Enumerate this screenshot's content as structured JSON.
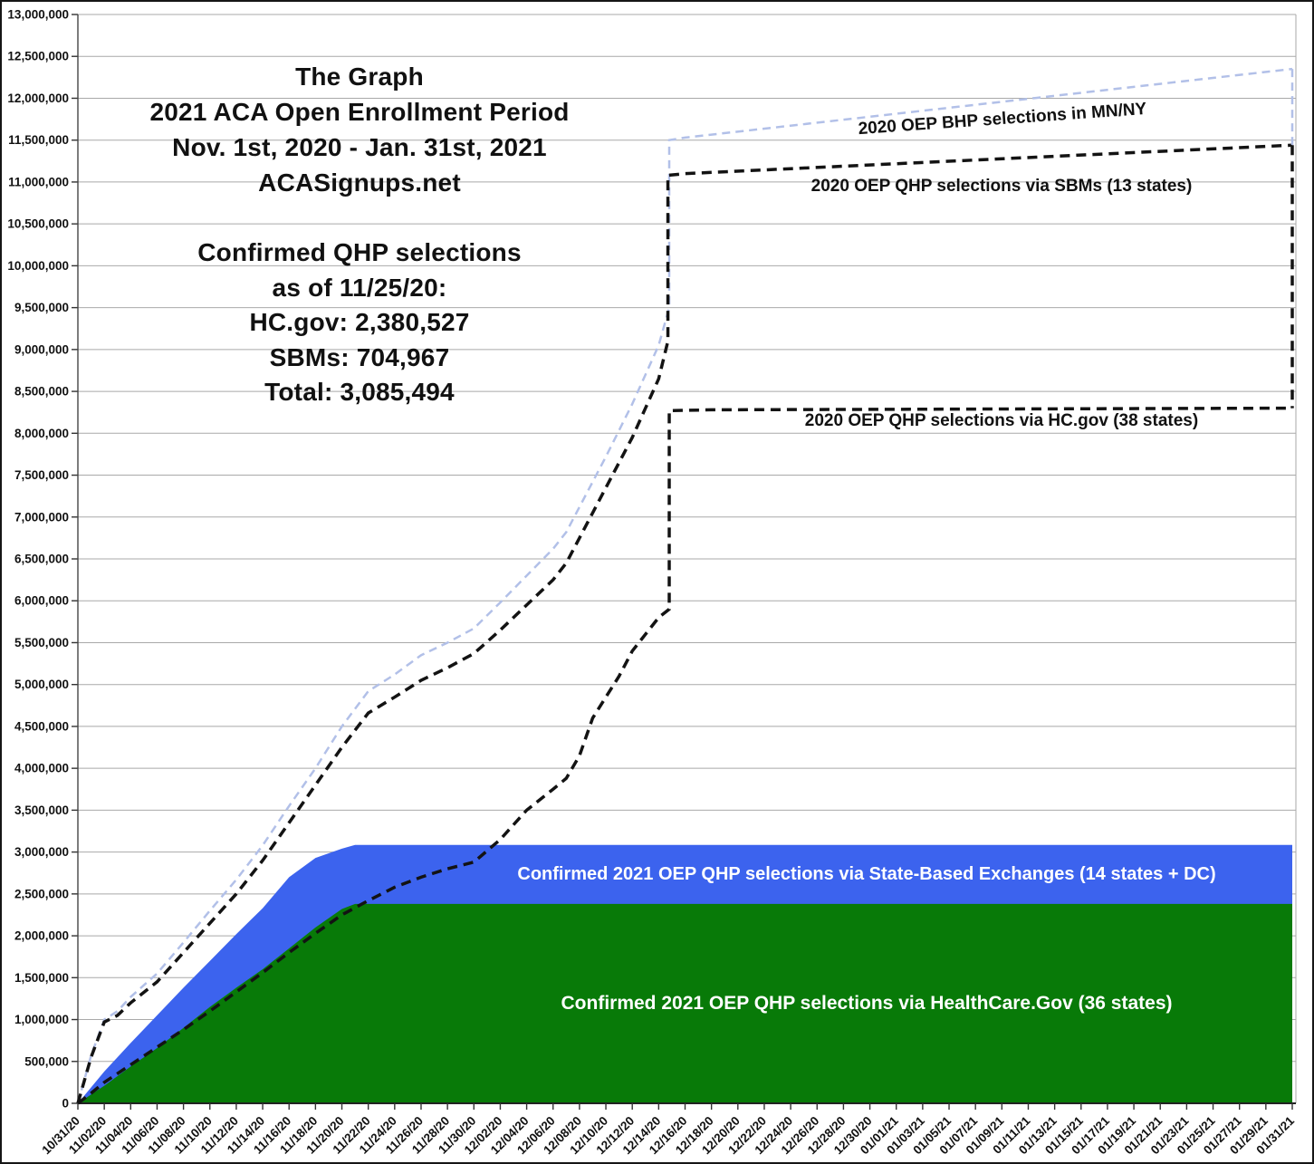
{
  "chart_data": {
    "type": "area",
    "title": "The Graph — 2021 ACA Open Enrollment Period",
    "title_block": [
      "The Graph",
      "2021 ACA Open Enrollment Period",
      "Nov. 1st, 2020 - Jan. 31st, 2021",
      "ACASignups.net"
    ],
    "stats_block": [
      "Confirmed QHP selections",
      "as of 11/25/20:",
      "HC.gov: 2,380,527",
      "SBMs: 704,967",
      "Total: 3,085,494"
    ],
    "grid": "horizontal-only",
    "legend_position": "inline-annotations",
    "y_axis": {
      "min": 0,
      "max": 13000000,
      "step": 500000,
      "tick_labels": [
        "0",
        "500,000",
        "1,000,000",
        "1,500,000",
        "2,000,000",
        "2,500,000",
        "3,000,000",
        "3,500,000",
        "4,000,000",
        "4,500,000",
        "5,000,000",
        "5,500,000",
        "6,000,000",
        "6,500,000",
        "7,000,000",
        "7,500,000",
        "8,000,000",
        "8,500,000",
        "9,000,000",
        "9,500,000",
        "10,000,000",
        "10,500,000",
        "11,000,000",
        "11,500,000",
        "12,000,000",
        "12,500,000",
        "13,000,000"
      ]
    },
    "x_axis": {
      "days_range": [
        0,
        92
      ],
      "days_per_tick": 2,
      "tick_labels": [
        "10/31/20",
        "11/02/20",
        "11/04/20",
        "11/06/20",
        "11/08/20",
        "11/10/20",
        "11/12/20",
        "11/14/20",
        "11/16/20",
        "11/18/20",
        "11/20/20",
        "11/22/20",
        "11/24/20",
        "11/26/20",
        "11/28/20",
        "11/30/20",
        "12/02/20",
        "12/04/20",
        "12/06/20",
        "12/08/20",
        "12/10/20",
        "12/12/20",
        "12/14/20",
        "12/16/20",
        "12/18/20",
        "12/20/20",
        "12/22/20",
        "12/24/20",
        "12/26/20",
        "12/28/20",
        "12/30/20",
        "01/01/21",
        "01/03/21",
        "01/05/21",
        "01/07/21",
        "01/09/21",
        "01/11/21",
        "01/13/21",
        "01/15/21",
        "01/17/21",
        "01/19/21",
        "01/21/21",
        "01/23/21",
        "01/25/21",
        "01/27/21",
        "01/29/21",
        "01/31/21"
      ]
    },
    "series": [
      {
        "id": "qhp2021_total",
        "label": "Confirmed 2021 OEP QHP selections via State-Based Exchanges (14 states + DC)",
        "render": "area",
        "color": "#3c63ee",
        "note": "top edge = stacked total (HC.gov + SBMs); final plotted total 3,085,494",
        "points_day_value": [
          [
            0,
            0
          ],
          [
            2,
            380000
          ],
          [
            4,
            720000
          ],
          [
            6,
            1050000
          ],
          [
            8,
            1380000
          ],
          [
            10,
            1700000
          ],
          [
            12,
            2020000
          ],
          [
            14,
            2330000
          ],
          [
            16,
            2700000
          ],
          [
            18,
            2930000
          ],
          [
            20,
            3040000
          ],
          [
            21,
            3085494
          ],
          [
            92,
            3085494
          ]
        ]
      },
      {
        "id": "qhp2021_hcgov",
        "label": "Confirmed 2021 OEP QHP selections via HealthCare.Gov (36 states)",
        "render": "area",
        "color": "#087a08",
        "note": "final plotted value 2,380,527",
        "points_day_value": [
          [
            0,
            0
          ],
          [
            2,
            210000
          ],
          [
            4,
            440000
          ],
          [
            6,
            660000
          ],
          [
            8,
            900000
          ],
          [
            10,
            1150000
          ],
          [
            12,
            1380000
          ],
          [
            14,
            1600000
          ],
          [
            16,
            1850000
          ],
          [
            18,
            2100000
          ],
          [
            20,
            2320000
          ],
          [
            21,
            2380527
          ],
          [
            92,
            2380527
          ]
        ]
      },
      {
        "id": "bhp2020",
        "label": "2020 OEP BHP selections in MN/NY",
        "render": "dashed-line",
        "color": "#b2c0e8",
        "stroke_width": 2.5,
        "dash": "9 6",
        "points_day_value": [
          [
            0,
            0
          ],
          [
            1,
            570000
          ],
          [
            2,
            1000000
          ],
          [
            3,
            1100000
          ],
          [
            4,
            1270000
          ],
          [
            6,
            1550000
          ],
          [
            8,
            1920000
          ],
          [
            10,
            2300000
          ],
          [
            12,
            2670000
          ],
          [
            14,
            3080000
          ],
          [
            16,
            3550000
          ],
          [
            18,
            4000000
          ],
          [
            20,
            4500000
          ],
          [
            22,
            4920000
          ],
          [
            24,
            5120000
          ],
          [
            26,
            5350000
          ],
          [
            28,
            5500000
          ],
          [
            30,
            5670000
          ],
          [
            32,
            5980000
          ],
          [
            34,
            6300000
          ],
          [
            36,
            6620000
          ],
          [
            37,
            6820000
          ],
          [
            38,
            7120000
          ],
          [
            40,
            7720000
          ],
          [
            42,
            8350000
          ],
          [
            43,
            8700000
          ],
          [
            44,
            9050000
          ],
          [
            44.8,
            9500000
          ],
          [
            44.8,
            11500000
          ],
          [
            46,
            11530000
          ],
          [
            92,
            12350000
          ]
        ]
      },
      {
        "id": "sbm2020",
        "label": "2020 OEP QHP selections via SBMs (13 states)",
        "render": "dashed-line",
        "color": "#131313",
        "stroke_width": 3.5,
        "dash": "11 7",
        "points_day_value": [
          [
            0,
            0
          ],
          [
            1,
            550000
          ],
          [
            2,
            970000
          ],
          [
            3,
            1050000
          ],
          [
            4,
            1200000
          ],
          [
            6,
            1450000
          ],
          [
            8,
            1800000
          ],
          [
            10,
            2150000
          ],
          [
            12,
            2500000
          ],
          [
            14,
            2900000
          ],
          [
            16,
            3350000
          ],
          [
            18,
            3800000
          ],
          [
            20,
            4250000
          ],
          [
            22,
            4660000
          ],
          [
            24,
            4850000
          ],
          [
            26,
            5050000
          ],
          [
            28,
            5200000
          ],
          [
            30,
            5370000
          ],
          [
            32,
            5650000
          ],
          [
            34,
            5950000
          ],
          [
            36,
            6250000
          ],
          [
            37,
            6450000
          ],
          [
            38,
            6750000
          ],
          [
            40,
            7350000
          ],
          [
            42,
            7950000
          ],
          [
            43,
            8300000
          ],
          [
            44,
            8650000
          ],
          [
            44.7,
            9100000
          ],
          [
            44.7,
            11080000
          ],
          [
            46,
            11100000
          ],
          [
            92,
            11440000
          ]
        ]
      },
      {
        "id": "hcgov2020",
        "label": "2020 OEP QHP selections via HC.gov (38 states)",
        "render": "dashed-line",
        "color": "#131313",
        "stroke_width": 3.5,
        "dash": "11 7",
        "points_day_value": [
          [
            0,
            0
          ],
          [
            1,
            120000
          ],
          [
            2,
            250000
          ],
          [
            4,
            460000
          ],
          [
            6,
            670000
          ],
          [
            8,
            880000
          ],
          [
            10,
            1100000
          ],
          [
            12,
            1330000
          ],
          [
            14,
            1560000
          ],
          [
            16,
            1800000
          ],
          [
            18,
            2030000
          ],
          [
            20,
            2250000
          ],
          [
            22,
            2420000
          ],
          [
            24,
            2580000
          ],
          [
            26,
            2700000
          ],
          [
            28,
            2800000
          ],
          [
            30,
            2880000
          ],
          [
            32,
            3150000
          ],
          [
            34,
            3500000
          ],
          [
            36,
            3750000
          ],
          [
            37,
            3880000
          ],
          [
            38,
            4150000
          ],
          [
            39,
            4600000
          ],
          [
            40,
            4850000
          ],
          [
            41,
            5100000
          ],
          [
            42,
            5400000
          ],
          [
            43,
            5600000
          ],
          [
            44,
            5800000
          ],
          [
            44.8,
            5900000
          ],
          [
            44.8,
            8270000
          ],
          [
            48,
            8280000
          ],
          [
            92,
            8300000
          ]
        ]
      }
    ],
    "edge_drops": [
      {
        "day": 92,
        "from": 12350000,
        "to": 11440000,
        "color": "#b2c0e8",
        "stroke_width": 2.5,
        "dash": "9 6"
      },
      {
        "day": 92,
        "from": 11440000,
        "to": 8300000,
        "color": "#131313",
        "stroke_width": 3.5,
        "dash": "11 7"
      }
    ],
    "colors": {
      "area_hcgov_2021": "#087a08",
      "area_sbm_2021": "#3c63ee",
      "bhp_line": "#b2c0e8",
      "black_line": "#131313",
      "gridline": "#a9a9a9",
      "axis": "#222222"
    }
  }
}
